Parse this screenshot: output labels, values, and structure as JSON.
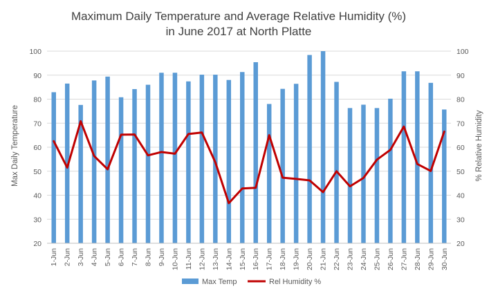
{
  "chart_data": {
    "type": "bar+line",
    "title_lines": [
      "Maximum Daily Temperature and Average Relative Humidity (%)",
      "in June 2017 at North Platte"
    ],
    "ylabel_left": "Max Daily Temperature",
    "ylabel_right": "% Relative Humidity",
    "ylim_left": [
      20,
      100
    ],
    "ylim_right": [
      20,
      100
    ],
    "yticks": [
      20,
      30,
      40,
      50,
      60,
      70,
      80,
      90,
      100
    ],
    "grid": true,
    "legend_position": "bottom",
    "categories": [
      "1-Jun",
      "2-Jun",
      "3-Jun",
      "4-Jun",
      "5-Jun",
      "6-Jun",
      "7-Jun",
      "8-Jun",
      "9-Jun",
      "10-Jun",
      "11-Jun",
      "12-Jun",
      "13-Jun",
      "14-Jun",
      "15-Jun",
      "16-Jun",
      "17-Jun",
      "18-Jun",
      "19-Jun",
      "20-Jun",
      "21-Jun",
      "22-Jun",
      "23-Jun",
      "24-Jun",
      "25-Jun",
      "26-Jun",
      "27-Jun",
      "28-Jun",
      "29-Jun",
      "30-Jun"
    ],
    "series": [
      {
        "name": "Max Temp",
        "type": "bar",
        "axis": "left",
        "color": "#5b9bd5",
        "values": [
          82.9,
          86.5,
          77.6,
          87.8,
          89.4,
          80.8,
          84.2,
          86.0,
          91.0,
          91.0,
          87.4,
          90.2,
          90.2,
          88.0,
          91.3,
          95.4,
          78.0,
          84.3,
          86.4,
          98.4,
          100.0,
          87.2,
          76.3,
          77.7,
          76.3,
          80.2,
          91.6,
          91.6,
          86.8,
          75.7
        ]
      },
      {
        "name": "Rel Humidity %",
        "type": "line",
        "axis": "right",
        "color": "#c00000",
        "values": [
          62.5,
          51.5,
          70.8,
          56.3,
          50.8,
          65.2,
          65.3,
          56.6,
          58.0,
          57.3,
          65.5,
          66.1,
          53.7,
          36.7,
          42.8,
          43.1,
          65.0,
          47.3,
          46.8,
          46.2,
          41.3,
          50.0,
          43.7,
          47.2,
          54.8,
          58.9,
          68.6,
          53.0,
          50.1,
          66.5
        ]
      }
    ]
  }
}
